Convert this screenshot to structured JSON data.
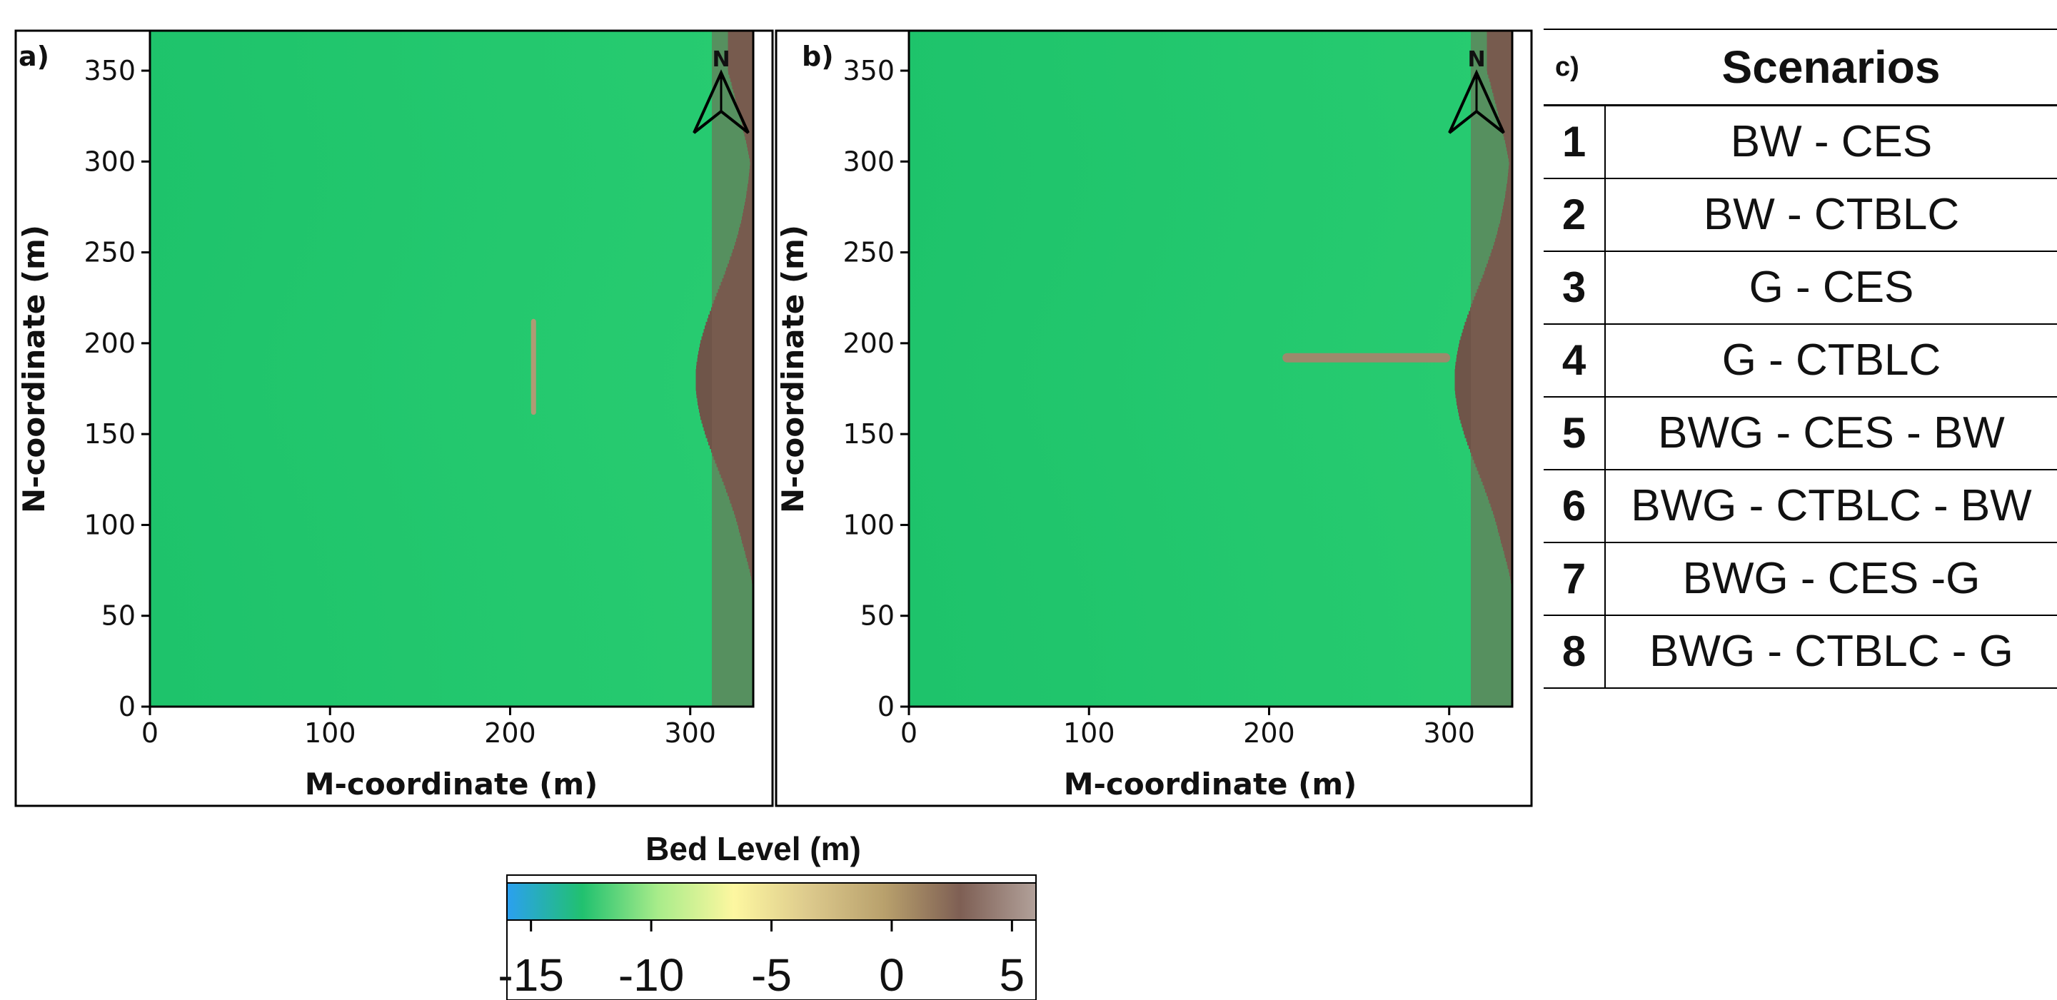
{
  "chart_data": [
    {
      "type": "heatmap",
      "panel_label": "a)",
      "xlabel": "M-coordinate (m)",
      "ylabel": "N-coordinate (m)",
      "xlim": [
        0,
        335
      ],
      "ylim": [
        0,
        372
      ],
      "xticks": [
        0,
        100,
        200,
        300
      ],
      "yticks": [
        0,
        50,
        100,
        150,
        200,
        250,
        300,
        350
      ],
      "north_arrow": "N",
      "structure": {
        "orientation": "shore-parallel",
        "m": [
          213,
          213
        ],
        "n": [
          162,
          212
        ]
      }
    },
    {
      "type": "heatmap",
      "panel_label": "b)",
      "xlabel": "M-coordinate (m)",
      "ylabel": "N-coordinate (m)",
      "xlim": [
        0,
        335
      ],
      "ylim": [
        0,
        372
      ],
      "xticks": [
        0,
        100,
        200,
        300
      ],
      "yticks": [
        0,
        50,
        100,
        150,
        200,
        250,
        300,
        350
      ],
      "north_arrow": "N",
      "structure": {
        "orientation": "shore-normal",
        "m": [
          210,
          298
        ],
        "n": [
          192,
          192
        ]
      }
    }
  ],
  "colorbar": {
    "title": "Bed Level (m)",
    "range": [
      -16,
      6
    ],
    "ticks": [
      -15,
      -10,
      -5,
      0,
      5
    ],
    "tick_labels": [
      "-15",
      "-10",
      "-5",
      "0",
      "5"
    ],
    "colors": [
      "#2ba0f0",
      "#21c16f",
      "#a8ec8a",
      "#fdf7a0",
      "#dcc98c",
      "#b8a06c",
      "#7e5f54",
      "#b2a19a"
    ]
  },
  "scenarios": {
    "panel_label": "c)",
    "title": "Scenarios",
    "rows": [
      {
        "num": "1",
        "name": "BW - CES"
      },
      {
        "num": "2",
        "name": "BW - CTBLC"
      },
      {
        "num": "3",
        "name": "G - CES"
      },
      {
        "num": "4",
        "name": "G - CTBLC"
      },
      {
        "num": "5",
        "name": "BWG - CES - BW"
      },
      {
        "num": "6",
        "name": "BWG - CTBLC - BW"
      },
      {
        "num": "7",
        "name": "BWG - CES -G"
      },
      {
        "num": "8",
        "name": "BWG - CTBLC - G"
      }
    ]
  }
}
